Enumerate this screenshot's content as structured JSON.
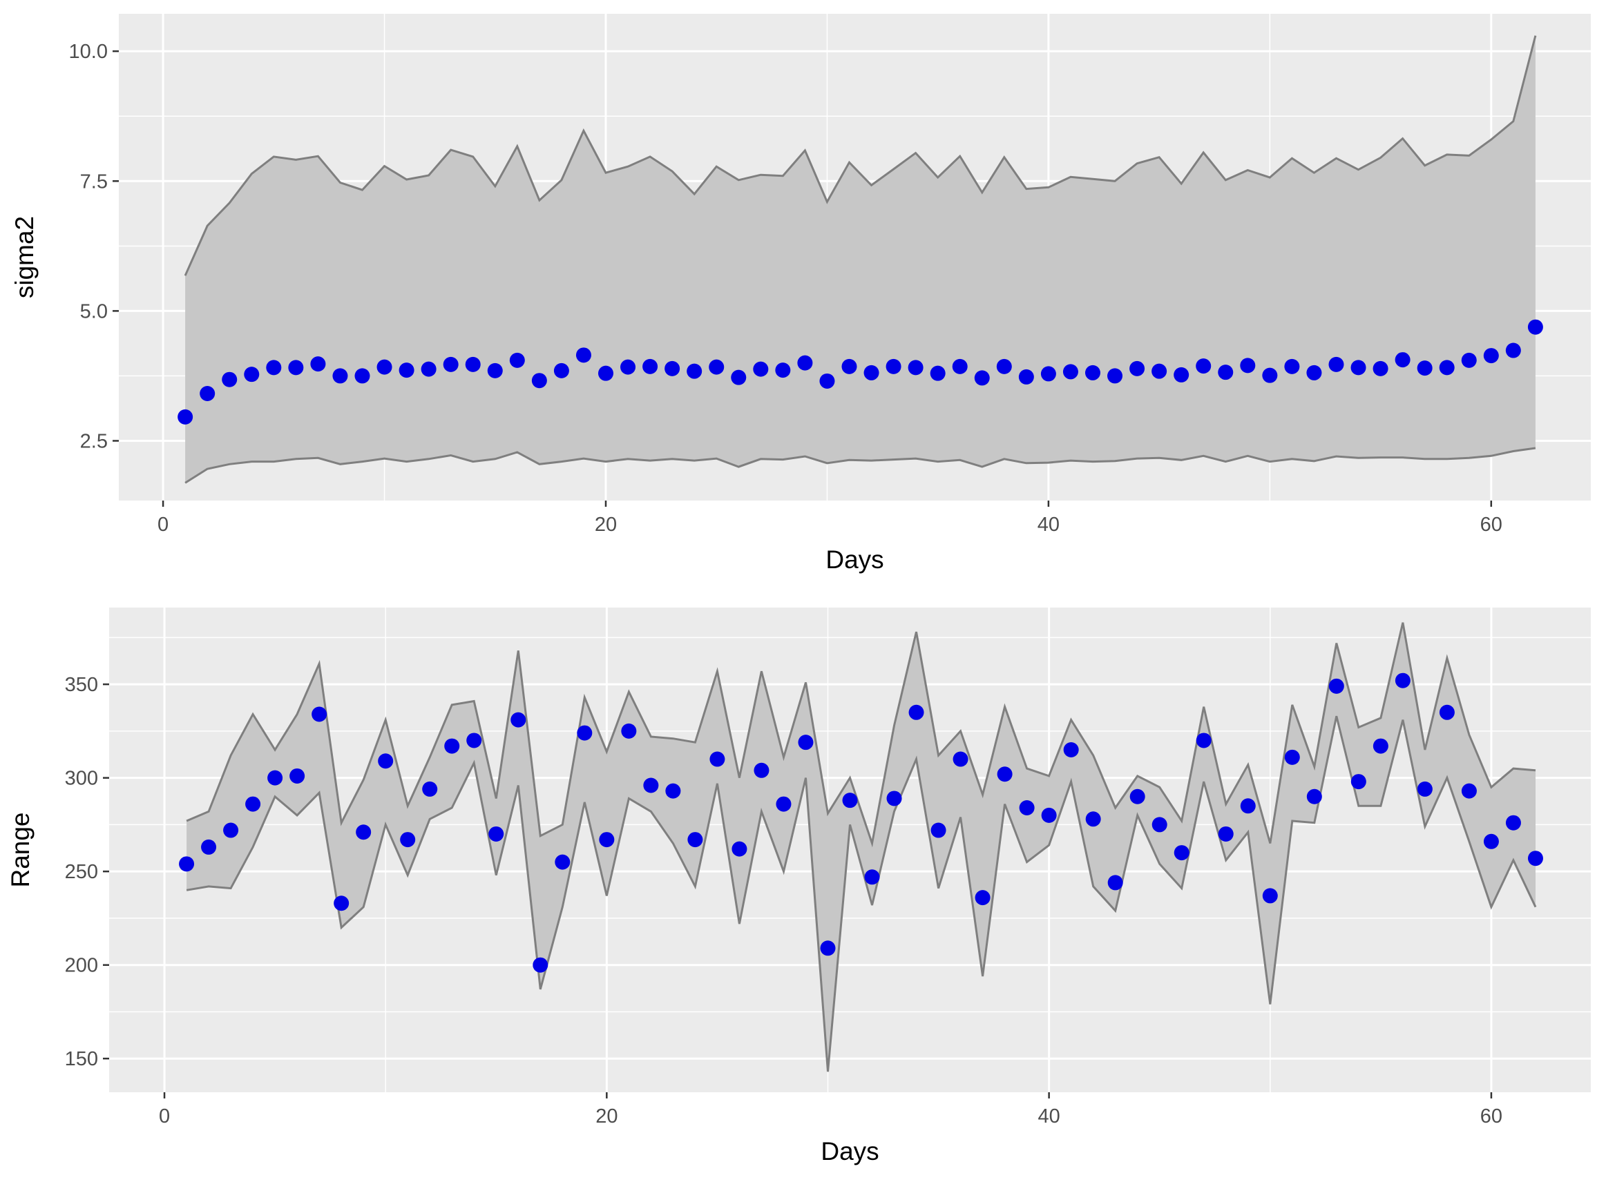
{
  "chart_data": [
    {
      "type": "line",
      "xlabel": "Days",
      "ylabel": "sigma2",
      "xlim": [
        -2,
        64.5
      ],
      "ylim": [
        1.35,
        10.72
      ],
      "xticks": [
        0,
        20,
        40,
        60
      ],
      "yticks": [
        2.5,
        5.0,
        7.5,
        10.0
      ],
      "ytick_labels": [
        "2.5",
        "5.0",
        "7.5",
        "10.0"
      ],
      "grid": true,
      "legend": "none",
      "point_color": "#0000e6",
      "ribbon_color": "#c7c7c7",
      "line_color": "#7f7f7f",
      "x": [
        1,
        2,
        3,
        4,
        5,
        6,
        7,
        8,
        9,
        10,
        11,
        12,
        13,
        14,
        15,
        16,
        17,
        18,
        19,
        20,
        21,
        22,
        23,
        24,
        25,
        26,
        27,
        28,
        29,
        30,
        31,
        32,
        33,
        34,
        35,
        36,
        37,
        38,
        39,
        40,
        41,
        42,
        43,
        44,
        45,
        46,
        47,
        48,
        49,
        50,
        51,
        52,
        53,
        54,
        55,
        56,
        57,
        58,
        59,
        60,
        61,
        62
      ],
      "series": [
        {
          "values": [
            2.96,
            3.41,
            3.68,
            3.78,
            3.91,
            3.91,
            3.98,
            3.75,
            3.75,
            3.92,
            3.86,
            3.88,
            3.97,
            3.97,
            3.85,
            4.05,
            3.66,
            3.85,
            4.15,
            3.8,
            3.92,
            3.93,
            3.89,
            3.84,
            3.92,
            3.72,
            3.88,
            3.86,
            4.0,
            3.65,
            3.93,
            3.81,
            3.93,
            3.91,
            3.8,
            3.93,
            3.71,
            3.93,
            3.73,
            3.79,
            3.83,
            3.81,
            3.75,
            3.89,
            3.84,
            3.77,
            3.94,
            3.82,
            3.95,
            3.76,
            3.93,
            3.81,
            3.97,
            3.91,
            3.89,
            4.06,
            3.9,
            3.91,
            4.05,
            4.14,
            4.24,
            4.69
          ],
          "lower": [
            1.69,
            1.96,
            2.05,
            2.1,
            2.1,
            2.15,
            2.17,
            2.05,
            2.1,
            2.16,
            2.1,
            2.15,
            2.22,
            2.1,
            2.15,
            2.28,
            2.05,
            2.1,
            2.16,
            2.1,
            2.15,
            2.12,
            2.15,
            2.12,
            2.16,
            2.0,
            2.15,
            2.14,
            2.2,
            2.07,
            2.13,
            2.12,
            2.14,
            2.16,
            2.1,
            2.13,
            2.0,
            2.15,
            2.07,
            2.08,
            2.12,
            2.1,
            2.11,
            2.16,
            2.17,
            2.13,
            2.21,
            2.1,
            2.21,
            2.1,
            2.15,
            2.11,
            2.2,
            2.17,
            2.18,
            2.18,
            2.15,
            2.15,
            2.17,
            2.21,
            2.3,
            2.36
          ],
          "upper": [
            5.68,
            6.64,
            7.08,
            7.64,
            7.97,
            7.91,
            7.98,
            7.47,
            7.33,
            7.79,
            7.53,
            7.61,
            8.1,
            7.97,
            7.4,
            8.17,
            7.13,
            7.52,
            8.47,
            7.66,
            7.78,
            7.97,
            7.69,
            7.25,
            7.78,
            7.52,
            7.62,
            7.6,
            8.09,
            7.1,
            7.86,
            7.42,
            7.73,
            8.04,
            7.57,
            7.98,
            7.28,
            7.96,
            7.35,
            7.38,
            7.58,
            7.54,
            7.5,
            7.84,
            7.96,
            7.45,
            8.05,
            7.52,
            7.71,
            7.57,
            7.94,
            7.66,
            7.94,
            7.72,
            7.95,
            8.32,
            7.8,
            8.01,
            7.99,
            8.3,
            8.65,
            10.3
          ]
        }
      ]
    },
    {
      "type": "line",
      "xlabel": "Days",
      "ylabel": "Range",
      "xlim": [
        -2.5,
        64.5
      ],
      "ylim": [
        132,
        391
      ],
      "xticks": [
        0,
        20,
        40,
        60
      ],
      "yticks": [
        150,
        200,
        250,
        300,
        350
      ],
      "ytick_labels": [
        "150",
        "200",
        "250",
        "300",
        "350"
      ],
      "grid": true,
      "legend": "none",
      "point_color": "#0000e6",
      "ribbon_color": "#c7c7c7",
      "line_color": "#7f7f7f",
      "x": [
        1,
        2,
        3,
        4,
        5,
        6,
        7,
        8,
        9,
        10,
        11,
        12,
        13,
        14,
        15,
        16,
        17,
        18,
        19,
        20,
        21,
        22,
        23,
        24,
        25,
        26,
        27,
        28,
        29,
        30,
        31,
        32,
        33,
        34,
        35,
        36,
        37,
        38,
        39,
        40,
        41,
        42,
        43,
        44,
        45,
        46,
        47,
        48,
        49,
        50,
        51,
        52,
        53,
        54,
        55,
        56,
        57,
        58,
        59,
        60,
        61,
        62
      ],
      "series": [
        {
          "values": [
            254,
            263,
            272,
            286,
            300,
            301,
            334,
            233,
            271,
            309,
            267,
            294,
            317,
            320,
            270,
            331,
            200,
            255,
            324,
            267,
            325,
            296,
            293,
            267,
            310,
            262,
            304,
            286,
            319,
            209,
            288,
            247,
            289,
            335,
            272,
            310,
            236,
            302,
            284,
            280,
            315,
            278,
            244,
            290,
            275,
            260,
            320,
            270,
            285,
            237,
            311,
            290,
            349,
            298,
            317,
            352,
            294,
            335,
            293,
            266,
            276,
            257
          ],
          "lower": [
            240,
            242,
            241,
            263,
            290,
            280,
            292,
            220,
            231,
            275,
            248,
            278,
            284,
            308,
            248,
            296,
            187,
            231,
            287,
            237,
            289,
            282,
            265,
            242,
            297,
            222,
            282,
            250,
            300,
            143,
            275,
            232,
            282,
            310,
            241,
            279,
            194,
            286,
            255,
            264,
            298,
            242,
            229,
            280,
            254,
            241,
            298,
            256,
            271,
            179,
            277,
            276,
            333,
            285,
            285,
            331,
            274,
            300,
            266,
            231,
            256,
            231
          ],
          "upper": [
            277,
            282,
            312,
            334,
            315,
            334,
            361,
            276,
            299,
            331,
            285,
            311,
            339,
            341,
            289,
            368,
            269,
            275,
            343,
            314,
            346,
            322,
            321,
            319,
            357,
            300,
            357,
            311,
            351,
            281,
            300,
            265,
            328,
            378,
            312,
            325,
            291,
            338,
            305,
            301,
            331,
            312,
            284,
            301,
            295,
            277,
            338,
            286,
            307,
            265,
            339,
            306,
            372,
            327,
            332,
            383,
            315,
            364,
            323,
            295,
            305,
            304
          ]
        }
      ]
    }
  ]
}
